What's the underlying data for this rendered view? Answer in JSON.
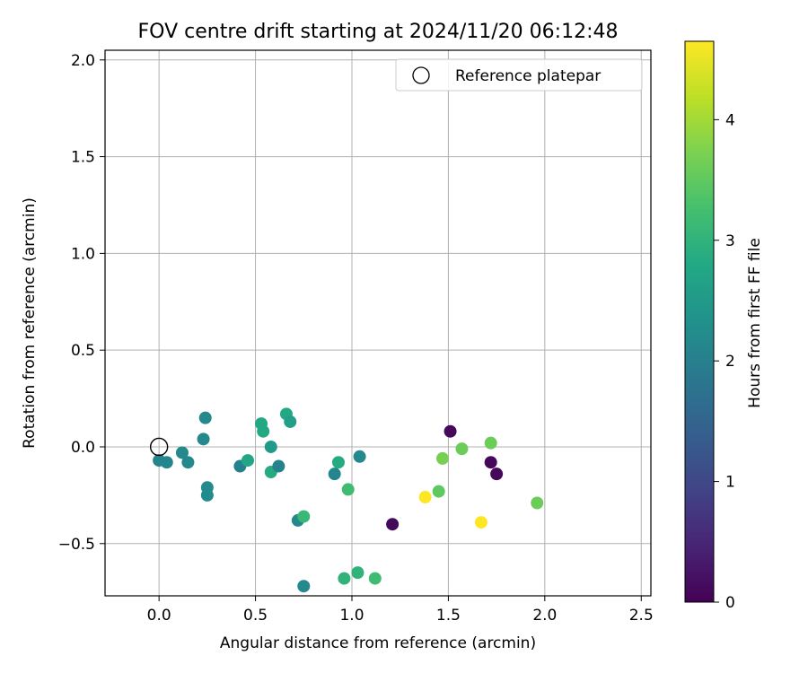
{
  "chart_data": {
    "type": "scatter",
    "title": "FOV centre drift starting at 2024/11/20 06:12:48",
    "xlabel": "Angular distance from reference (arcmin)",
    "ylabel": "Rotation from reference (arcmin)",
    "xlim": [
      -0.28,
      2.55
    ],
    "ylim": [
      -0.77,
      2.05
    ],
    "xticks": [
      0.0,
      0.5,
      1.0,
      1.5,
      2.0,
      2.5
    ],
    "xtick_labels": [
      "0.0",
      "0.5",
      "1.0",
      "1.5",
      "2.0",
      "2.5"
    ],
    "yticks": [
      -0.5,
      0.0,
      0.5,
      1.0,
      1.5,
      2.0
    ],
    "ytick_labels": [
      "−0.5",
      "0.0",
      "0.5",
      "1.0",
      "1.5",
      "2.0"
    ],
    "grid": true,
    "legend": {
      "position": "top-right",
      "entries": [
        {
          "label": "Reference platepar",
          "marker": "open-circle"
        }
      ]
    },
    "reference_point": {
      "x": 0.0,
      "y": 0.0
    },
    "colorbar": {
      "label": "Hours from first FF file",
      "min": 0,
      "max": 4.65,
      "colormap": "viridis",
      "ticks": [
        0,
        1,
        2,
        3,
        4
      ],
      "tick_labels": [
        "0",
        "1",
        "2",
        "3",
        "4"
      ]
    },
    "points": [
      {
        "x": 0.0,
        "y": -0.07,
        "h": 2.1
      },
      {
        "x": 0.04,
        "y": -0.08,
        "h": 2.1
      },
      {
        "x": 0.12,
        "y": -0.03,
        "h": 2.15
      },
      {
        "x": 0.15,
        "y": -0.08,
        "h": 2.15
      },
      {
        "x": 0.23,
        "y": 0.04,
        "h": 2.15
      },
      {
        "x": 0.24,
        "y": 0.15,
        "h": 2.15
      },
      {
        "x": 0.25,
        "y": -0.21,
        "h": 2.2
      },
      {
        "x": 0.25,
        "y": -0.25,
        "h": 2.2
      },
      {
        "x": 0.42,
        "y": -0.1,
        "h": 2.0
      },
      {
        "x": 0.46,
        "y": -0.07,
        "h": 2.75
      },
      {
        "x": 0.53,
        "y": 0.12,
        "h": 2.8
      },
      {
        "x": 0.54,
        "y": 0.08,
        "h": 2.8
      },
      {
        "x": 0.58,
        "y": -0.13,
        "h": 2.85
      },
      {
        "x": 0.58,
        "y": 0.0,
        "h": 2.5
      },
      {
        "x": 0.62,
        "y": -0.1,
        "h": 2.05
      },
      {
        "x": 0.66,
        "y": 0.17,
        "h": 2.8
      },
      {
        "x": 0.68,
        "y": 0.13,
        "h": 2.6
      },
      {
        "x": 0.72,
        "y": -0.38,
        "h": 2.15
      },
      {
        "x": 0.75,
        "y": -0.36,
        "h": 3.1
      },
      {
        "x": 0.75,
        "y": -0.72,
        "h": 2.15
      },
      {
        "x": 0.91,
        "y": -0.14,
        "h": 2.1
      },
      {
        "x": 0.93,
        "y": -0.08,
        "h": 2.85
      },
      {
        "x": 0.96,
        "y": -0.68,
        "h": 3.0
      },
      {
        "x": 0.98,
        "y": -0.22,
        "h": 3.2
      },
      {
        "x": 1.03,
        "y": -0.65,
        "h": 3.0
      },
      {
        "x": 1.04,
        "y": -0.05,
        "h": 2.15
      },
      {
        "x": 1.12,
        "y": -0.68,
        "h": 3.2
      },
      {
        "x": 1.21,
        "y": -0.4,
        "h": 0.1
      },
      {
        "x": 1.38,
        "y": -0.26,
        "h": 4.65
      },
      {
        "x": 1.45,
        "y": -0.23,
        "h": 3.5
      },
      {
        "x": 1.47,
        "y": -0.06,
        "h": 3.7
      },
      {
        "x": 1.51,
        "y": 0.08,
        "h": 0.1
      },
      {
        "x": 1.57,
        "y": -0.01,
        "h": 3.6
      },
      {
        "x": 1.67,
        "y": -0.39,
        "h": 4.65
      },
      {
        "x": 1.72,
        "y": -0.08,
        "h": 0.1
      },
      {
        "x": 1.72,
        "y": 0.02,
        "h": 3.6
      },
      {
        "x": 1.75,
        "y": -0.14,
        "h": 0.1
      },
      {
        "x": 1.96,
        "y": -0.29,
        "h": 3.6
      }
    ]
  }
}
